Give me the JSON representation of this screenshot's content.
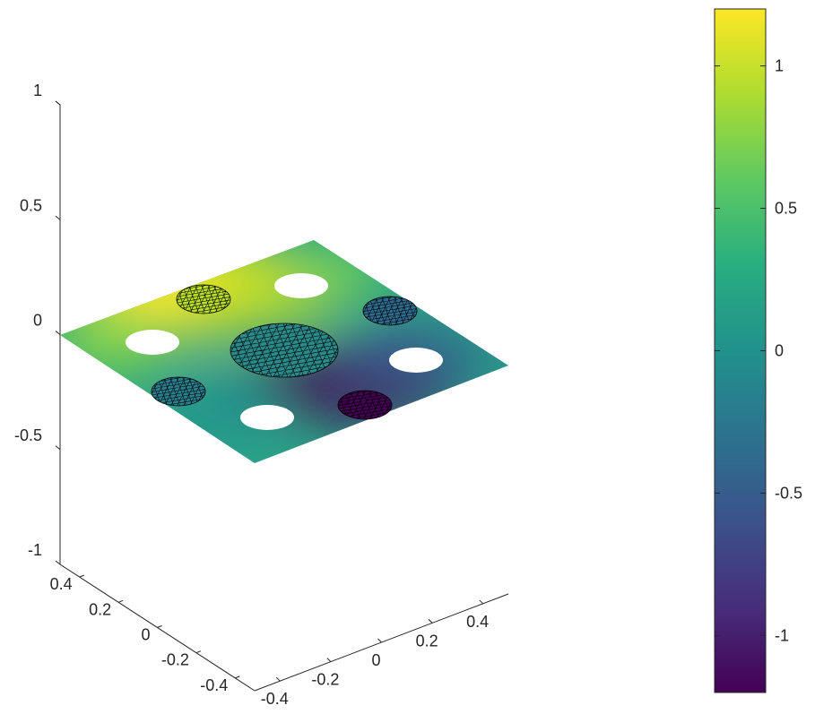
{
  "chart_data": {
    "type": "surface3d",
    "title": "",
    "xlabel": "",
    "ylabel": "",
    "zlabel": "",
    "x_ticks": [
      "-0.4",
      "-0.2",
      "0",
      "0.2",
      "0.4"
    ],
    "y_ticks": [
      "-0.4",
      "-0.2",
      "0",
      "0.2",
      "0.4"
    ],
    "z_ticks": [
      "-1",
      "-0.5",
      "0",
      "0.5",
      "1"
    ],
    "xlim": [
      -0.5,
      0.5
    ],
    "ylim": [
      -0.5,
      0.5
    ],
    "zlim": [
      -1,
      1
    ],
    "colormap": "viridis",
    "colorbar": {
      "ticks": [
        "-1",
        "-0.5",
        "0",
        "0.5",
        "1"
      ],
      "range": [
        -1.2,
        1.2
      ]
    },
    "surface": {
      "description_z": "flat plane at z = 0 with color-mapped field",
      "holes": [
        {
          "x": -0.31,
          "y": 0.0
        },
        {
          "x": 0.0,
          "y": 0.31
        },
        {
          "x": 0.31,
          "y": 0.0
        },
        {
          "x": 0.0,
          "y": -0.31
        }
      ],
      "meshed_disks": [
        {
          "x": 0.0,
          "y": 0.0,
          "r": 0.2
        },
        {
          "x": -0.22,
          "y": 0.22,
          "r": 0.1
        },
        {
          "x": 0.22,
          "y": 0.22,
          "r": 0.1
        },
        {
          "x": -0.22,
          "y": -0.22,
          "r": 0.1
        },
        {
          "x": 0.22,
          "y": -0.22,
          "r": 0.1
        }
      ],
      "color_extremes": {
        "max": 1.2,
        "min": -1.2
      },
      "grid": false
    }
  }
}
